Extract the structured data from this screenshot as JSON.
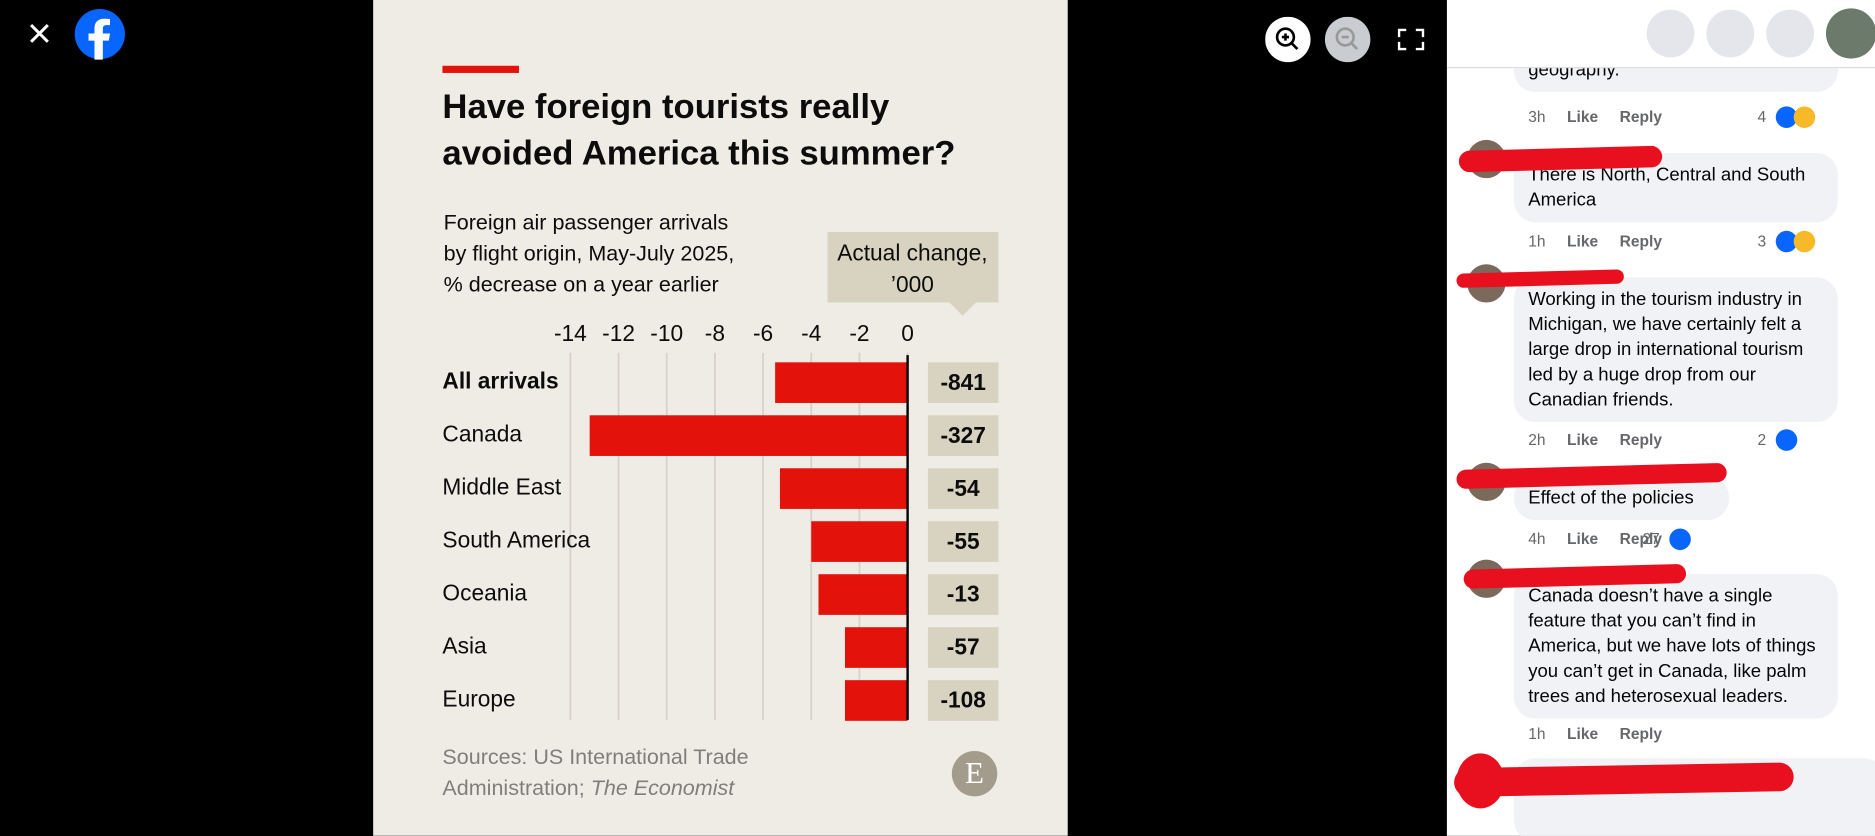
{
  "chart_data": {
    "type": "bar",
    "orientation": "horizontal",
    "title": [
      "Have foreign tourists really",
      "avoided America this summer?"
    ],
    "subtitle": [
      "Foreign air passenger arrivals",
      "by flight origin, May-July 2025,",
      "% decrease on a year earlier"
    ],
    "change_header": [
      "Actual change,",
      "’000"
    ],
    "categories": [
      "All arrivals",
      "Canada",
      "Middle East",
      "South America",
      "Oceania",
      "Asia",
      "Europe"
    ],
    "values": [
      -5.5,
      -13.2,
      -5.3,
      -4.0,
      -3.7,
      -2.6,
      -2.6
    ],
    "actual_change": [
      -841,
      -327,
      -54,
      -55,
      -13,
      -57,
      -108
    ],
    "color": "#e3120b",
    "xlim": [
      -14,
      0
    ],
    "xticks": [
      -14,
      -12,
      -10,
      -8,
      -6,
      -4,
      -2,
      0
    ],
    "grid": true,
    "source": [
      "Sources: US International Trade",
      "Administration; "
    ],
    "source_italic": "The Economist",
    "logo": "E"
  },
  "actions": [
    "Like",
    "Reply"
  ],
  "comments": [
    {
      "text": "geography.",
      "time": "3h",
      "reactions": 4
    },
    {
      "text": "There is North, Central and South America",
      "time": "1h",
      "reactions": 3
    },
    {
      "text": "Working in the tourism industry in Michigan, we have certainly felt a large drop in international tourism led by a huge drop from our Canadian friends.",
      "time": "2h",
      "reactions": 2
    },
    {
      "text": "Effect of the policies",
      "time": "4h",
      "reactions": 27
    },
    {
      "text": "Canada doesn’t have a single feature that you can’t find in America, but we have lots of things you can’t get in Canada, like palm trees and heterosexual leaders.",
      "time": "1h"
    }
  ]
}
